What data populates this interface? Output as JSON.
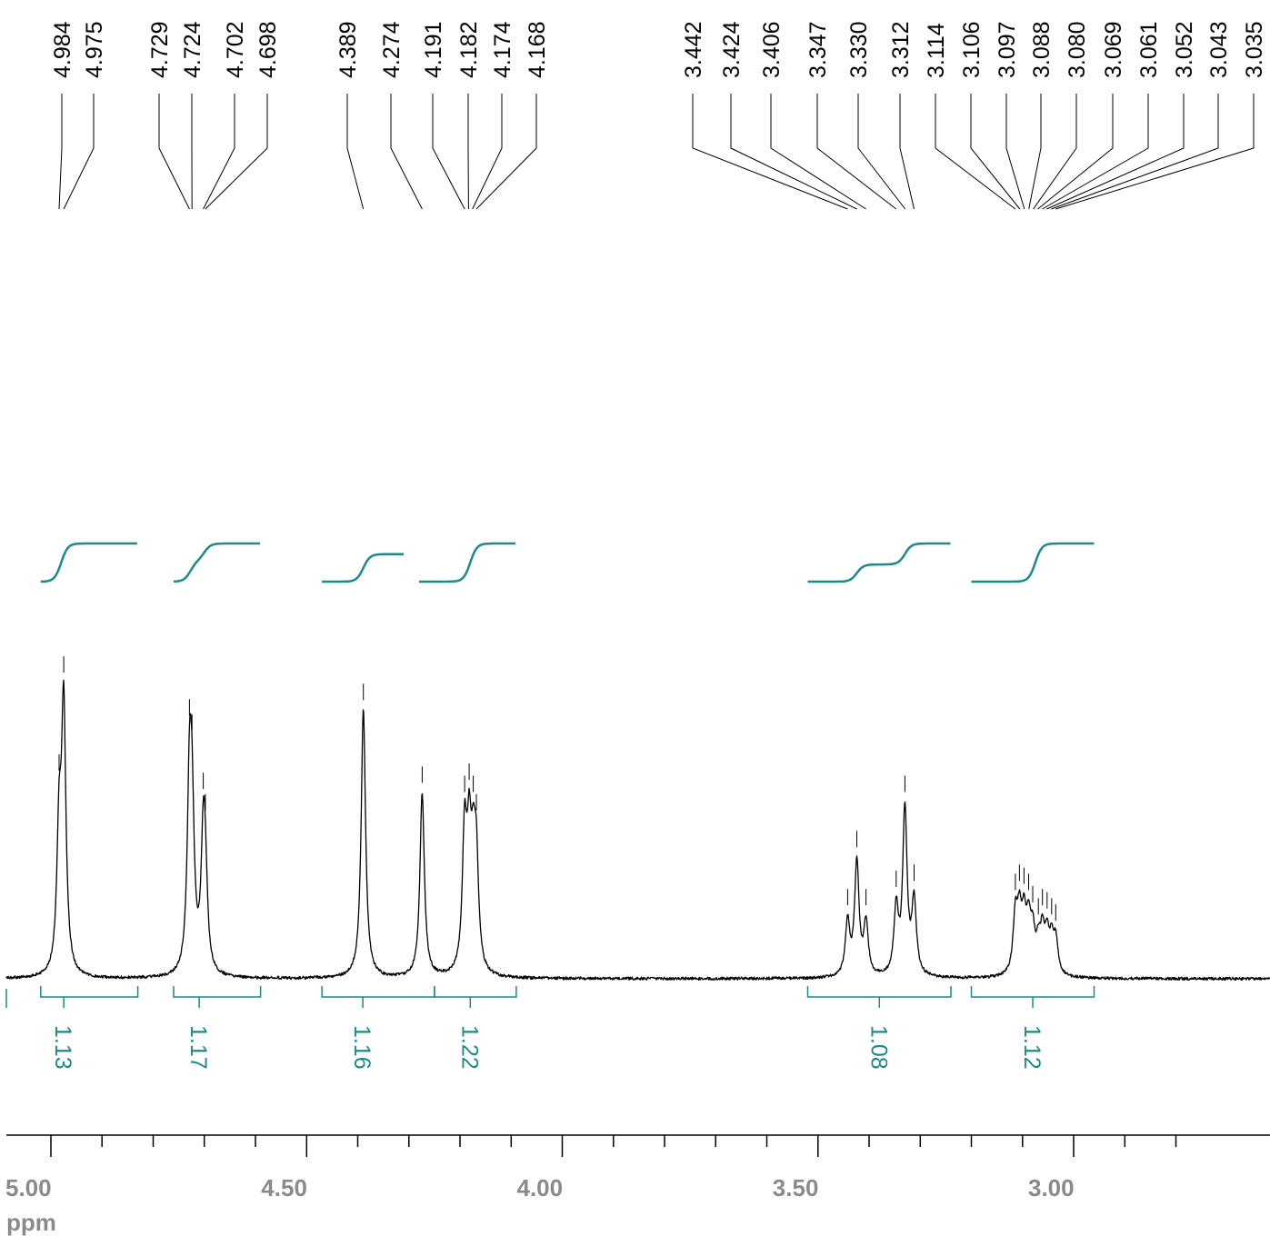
{
  "chart_data": {
    "type": "line",
    "title": "",
    "xlabel": "ppm",
    "ylabel": "",
    "x_reversed": true,
    "xlim": [
      5.025,
      2.77
    ],
    "x_ticks": {
      "major": [
        5.0,
        4.5,
        4.0,
        3.5,
        3.0
      ],
      "major_labels": [
        "5.00",
        "4.50",
        "4.00",
        "3.50",
        "3.00"
      ],
      "minor": [
        4.9,
        4.8,
        4.7,
        4.6,
        4.4,
        4.3,
        4.2,
        4.1,
        3.9,
        3.8,
        3.7,
        3.6,
        3.4,
        3.3,
        3.2,
        3.1,
        2.9,
        2.8
      ]
    },
    "peak_labels": [
      "4.984",
      "4.975",
      "4.729",
      "4.724",
      "4.702",
      "4.698",
      "4.389",
      "4.274",
      "4.191",
      "4.182",
      "4.174",
      "4.168",
      "3.442",
      "3.424",
      "3.406",
      "3.347",
      "3.330",
      "3.312",
      "3.114",
      "3.106",
      "3.097",
      "3.088",
      "3.080",
      "3.069",
      "3.061",
      "3.052",
      "3.043",
      "3.035"
    ],
    "spectrum_peaks": [
      {
        "ppm": 4.984,
        "height": 0.65
      },
      {
        "ppm": 4.975,
        "height": 0.97
      },
      {
        "ppm": 4.729,
        "height": 0.83
      },
      {
        "ppm": 4.724,
        "height": 0.78
      },
      {
        "ppm": 4.702,
        "height": 0.59
      },
      {
        "ppm": 4.698,
        "height": 0.52
      },
      {
        "ppm": 4.389,
        "height": 0.88
      },
      {
        "ppm": 4.274,
        "height": 0.61
      },
      {
        "ppm": 4.191,
        "height": 0.58
      },
      {
        "ppm": 4.182,
        "height": 0.62
      },
      {
        "ppm": 4.174,
        "height": 0.58
      },
      {
        "ppm": 4.168,
        "height": 0.52
      },
      {
        "ppm": 3.442,
        "height": 0.21
      },
      {
        "ppm": 3.424,
        "height": 0.4
      },
      {
        "ppm": 3.406,
        "height": 0.21
      },
      {
        "ppm": 3.347,
        "height": 0.27
      },
      {
        "ppm": 3.33,
        "height": 0.58
      },
      {
        "ppm": 3.312,
        "height": 0.29
      },
      {
        "ppm": 3.114,
        "height": 0.26
      },
      {
        "ppm": 3.106,
        "height": 0.29
      },
      {
        "ppm": 3.097,
        "height": 0.28
      },
      {
        "ppm": 3.088,
        "height": 0.26
      },
      {
        "ppm": 3.08,
        "height": 0.22
      },
      {
        "ppm": 3.069,
        "height": 0.18
      },
      {
        "ppm": 3.061,
        "height": 0.21
      },
      {
        "ppm": 3.052,
        "height": 0.2
      },
      {
        "ppm": 3.043,
        "height": 0.18
      },
      {
        "ppm": 3.035,
        "height": 0.16
      }
    ],
    "integrals": [
      {
        "from": 5.02,
        "to": 4.83,
        "value": "1.13",
        "label_ppm": 4.975
      },
      {
        "from": 4.76,
        "to": 4.59,
        "value": "1.17",
        "label_ppm": 4.71
      },
      {
        "from": 4.47,
        "to": 4.25,
        "value": "1.16",
        "label_ppm": 4.39
      },
      {
        "from": 4.25,
        "to": 4.09,
        "value": "1.22",
        "label_ppm": 4.18
      },
      {
        "from": 3.52,
        "to": 3.24,
        "value": "1.08",
        "label_ppm": 3.38
      },
      {
        "from": 3.2,
        "to": 2.96,
        "value": "1.12",
        "label_ppm": 3.08
      }
    ],
    "integral_curves": [
      {
        "from": 5.02,
        "to": 4.83,
        "steps": [
          {
            "ppm": 4.98,
            "frac": 1.0
          }
        ]
      },
      {
        "from": 4.76,
        "to": 4.59,
        "steps": [
          {
            "ppm": 4.727,
            "frac": 0.55
          },
          {
            "ppm": 4.7,
            "frac": 0.45
          }
        ]
      },
      {
        "from": 4.47,
        "to": 4.31,
        "steps": [
          {
            "ppm": 4.389,
            "frac": 0.72
          },
          {
            "ppm": 4.274,
            "frac": 0.28
          }
        ]
      },
      {
        "from": 4.28,
        "to": 4.09,
        "steps": [
          {
            "ppm": 4.18,
            "frac": 1.0
          }
        ]
      },
      {
        "from": 3.52,
        "to": 3.24,
        "steps": [
          {
            "ppm": 3.424,
            "frac": 0.45
          },
          {
            "ppm": 3.33,
            "frac": 0.55
          }
        ]
      },
      {
        "from": 3.2,
        "to": 2.96,
        "steps": [
          {
            "ppm": 3.075,
            "frac": 1.0
          }
        ]
      }
    ],
    "grid": false,
    "legend": "none",
    "colors": {
      "spectrum": "#000000",
      "integral": "#1a8a8a",
      "axis": "#000000",
      "axis_labels": "#8a8a8a"
    }
  }
}
